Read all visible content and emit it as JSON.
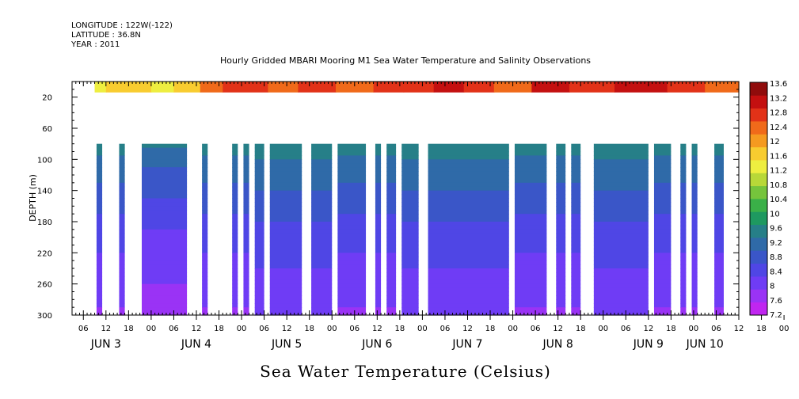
{
  "header": {
    "longitude": "LONGITUDE : 122W(-122)",
    "latitude": "LATITUDE : 36.8N",
    "year": "YEAR : 2011"
  },
  "chart_data": {
    "type": "heatmap",
    "title": "Hourly Gridded MBARI Mooring M1 Sea Water Temperature and Salinity Observations",
    "xlabel": "Sea Water Temperature (Celsius)",
    "ylabel": "DEPTH (m)",
    "xlim_hours": [
      0,
      177
    ],
    "ylim": [
      300,
      0
    ],
    "y_ticks": [
      20,
      60,
      100,
      140,
      180,
      220,
      260,
      300
    ],
    "x_tick_hours": [
      "06",
      "12",
      "18",
      "00",
      "06",
      "12",
      "18",
      "00",
      "06",
      "12",
      "18",
      "00",
      "06",
      "12",
      "18",
      "00",
      "06",
      "12",
      "18",
      "00",
      "06",
      "12",
      "18",
      "00",
      "06",
      "12",
      "18",
      "00",
      "06",
      "12",
      "18",
      "00"
    ],
    "date_labels": [
      {
        "text": "JUN  3",
        "hour": 9
      },
      {
        "text": "JUN  4",
        "hour": 33
      },
      {
        "text": "JUN  5",
        "hour": 57
      },
      {
        "text": "JUN  6",
        "hour": 81
      },
      {
        "text": "JUN  7",
        "hour": 105
      },
      {
        "text": "JUN  8",
        "hour": 129
      },
      {
        "text": "JUN  9",
        "hour": 153
      },
      {
        "text": "JUN 10",
        "hour": 168
      }
    ],
    "colorbar": {
      "levels": [
        7.2,
        7.6,
        8,
        8.4,
        8.8,
        9.2,
        9.6,
        10,
        10.4,
        10.8,
        11.2,
        11.6,
        12,
        12.4,
        12.8,
        13.2,
        13.6
      ],
      "labels": [
        "13.6",
        "13.2",
        "12.8",
        "12.4",
        "12",
        "11.6",
        "11.2",
        "10.8",
        "10.4",
        "10",
        "9.6",
        "9.2",
        "8.8",
        "8.4",
        "8",
        "7.6",
        "7.2"
      ],
      "colors": [
        "#c026f0",
        "#9a33f5",
        "#6f3cf5",
        "#4f46e5",
        "#3a56c8",
        "#2f6aa8",
        "#267f88",
        "#1e9960",
        "#3ab048",
        "#76c43c",
        "#b8d838",
        "#eeee40",
        "#f8cc30",
        "#f59a20",
        "#f06a1a",
        "#e23218",
        "#c41010",
        "#900c0c"
      ]
    },
    "surface_layer": {
      "depth_range": [
        0,
        14
      ],
      "segments": [
        {
          "start": 6,
          "end": 9,
          "value": 11.4
        },
        {
          "start": 9,
          "end": 21,
          "value": 11.8
        },
        {
          "start": 21,
          "end": 27,
          "value": 11.5
        },
        {
          "start": 27,
          "end": 34,
          "value": 11.9
        },
        {
          "start": 34,
          "end": 40,
          "value": 12.6
        },
        {
          "start": 40,
          "end": 52,
          "value": 12.9
        },
        {
          "start": 52,
          "end": 60,
          "value": 12.4
        },
        {
          "start": 60,
          "end": 70,
          "value": 12.8
        },
        {
          "start": 70,
          "end": 80,
          "value": 12.5
        },
        {
          "start": 80,
          "end": 88,
          "value": 12.9
        },
        {
          "start": 88,
          "end": 96,
          "value": 13.1
        },
        {
          "start": 96,
          "end": 104,
          "value": 13.3
        },
        {
          "start": 104,
          "end": 112,
          "value": 12.8
        },
        {
          "start": 112,
          "end": 122,
          "value": 12.6
        },
        {
          "start": 122,
          "end": 132,
          "value": 13.2
        },
        {
          "start": 132,
          "end": 144,
          "value": 12.9
        },
        {
          "start": 144,
          "end": 158,
          "value": 13.3
        },
        {
          "start": 158,
          "end": 168,
          "value": 12.9
        },
        {
          "start": 168,
          "end": 177,
          "value": 12.5
        }
      ]
    },
    "deep_layer": {
      "depth_range": [
        80,
        300
      ],
      "profile": [
        {
          "depth": 80,
          "value": 9.4
        },
        {
          "depth": 100,
          "value": 9.0
        },
        {
          "depth": 120,
          "value": 8.8
        },
        {
          "depth": 140,
          "value": 8.6
        },
        {
          "depth": 160,
          "value": 8.4
        },
        {
          "depth": 180,
          "value": 8.2
        },
        {
          "depth": 200,
          "value": 8.0
        },
        {
          "depth": 220,
          "value": 7.9
        },
        {
          "depth": 240,
          "value": 7.8
        },
        {
          "depth": 260,
          "value": 7.7
        },
        {
          "depth": 280,
          "value": 7.6
        },
        {
          "depth": 300,
          "value": 7.4
        }
      ],
      "data_blocks": [
        {
          "start": 6.5,
          "end": 8,
          "offset": 0.1
        },
        {
          "start": 12.5,
          "end": 14,
          "offset": 0.1
        },
        {
          "start": 18.5,
          "end": 30.5,
          "offset": -0.1
        },
        {
          "start": 34.5,
          "end": 36,
          "offset": 0.1
        },
        {
          "start": 42.5,
          "end": 44,
          "offset": 0.1
        },
        {
          "start": 45.5,
          "end": 47,
          "offset": 0.1
        },
        {
          "start": 48.5,
          "end": 51,
          "offset": 0.2
        },
        {
          "start": 52.5,
          "end": 61,
          "offset": 0.2
        },
        {
          "start": 63.5,
          "end": 69,
          "offset": 0.2
        },
        {
          "start": 70.5,
          "end": 78,
          "offset": 0.1
        },
        {
          "start": 80.5,
          "end": 82,
          "offset": 0.1
        },
        {
          "start": 83.5,
          "end": 86,
          "offset": 0.1
        },
        {
          "start": 87.5,
          "end": 92,
          "offset": 0.2
        },
        {
          "start": 94.5,
          "end": 116,
          "offset": 0.2
        },
        {
          "start": 117.5,
          "end": 126,
          "offset": 0.1
        },
        {
          "start": 128.5,
          "end": 131,
          "offset": 0.1
        },
        {
          "start": 132.5,
          "end": 135,
          "offset": 0.1
        },
        {
          "start": 138.5,
          "end": 153,
          "offset": 0.2
        },
        {
          "start": 154.5,
          "end": 159,
          "offset": 0.1
        },
        {
          "start": 161.5,
          "end": 163,
          "offset": 0.1
        },
        {
          "start": 164.5,
          "end": 166,
          "offset": 0.1
        },
        {
          "start": 170.5,
          "end": 173,
          "offset": 0.1
        }
      ]
    }
  }
}
